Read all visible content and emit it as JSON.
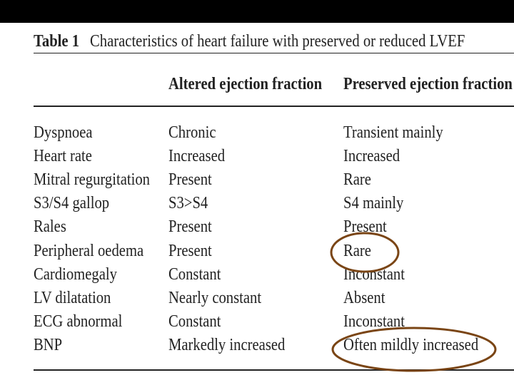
{
  "header": {
    "label": "Table 1",
    "title": "Characteristics of heart failure with preserved or reduced LVEF"
  },
  "table": {
    "columns": [
      "Altered ejection fraction",
      "Preserved ejection fraction"
    ],
    "rows": [
      [
        "Dyspnoea",
        "Chronic",
        "Transient mainly"
      ],
      [
        "Heart rate",
        "Increased",
        "Increased"
      ],
      [
        "Mitral regurgitation",
        "Present",
        "Rare"
      ],
      [
        "S3/S4 gallop",
        "S3>S4",
        "S4 mainly"
      ],
      [
        "Rales",
        "Present",
        "Present"
      ],
      [
        "Peripheral oedema",
        "Present",
        "Rare"
      ],
      [
        "Cardiomegaly",
        "Constant",
        "Inconstant"
      ],
      [
        "LV dilatation",
        "Nearly constant",
        "Absent"
      ],
      [
        "ECG abnormal",
        "Constant",
        "Inconstant"
      ],
      [
        "BNP",
        "Markedly increased",
        "Often mildly increased"
      ]
    ]
  }
}
